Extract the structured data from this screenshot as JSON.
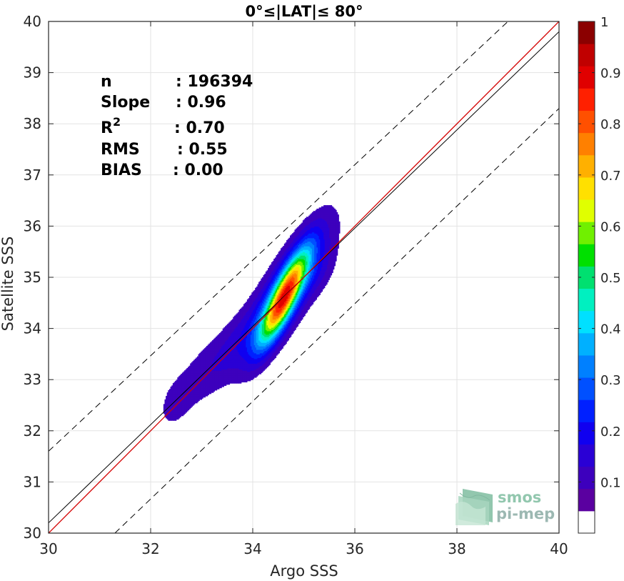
{
  "chart_data": {
    "type": "density-contour",
    "title": "0°≤|LAT|≤ 80°",
    "xlabel": "Argo SSS",
    "ylabel": "Satellite SSS",
    "xlim": [
      30,
      40
    ],
    "ylim": [
      30,
      40
    ],
    "xticks": [
      "30",
      "32",
      "34",
      "36",
      "38",
      "40"
    ],
    "yticks": [
      "30",
      "31",
      "32",
      "33",
      "34",
      "35",
      "36",
      "37",
      "38",
      "39",
      "40"
    ],
    "grid": true,
    "stats": [
      {
        "label": "n",
        "value": ": 196394"
      },
      {
        "label": "Slope",
        "value": ": 0.96"
      },
      {
        "label": "R",
        "sup": "2",
        "value": ": 0.70"
      },
      {
        "label": "RMS",
        "value": ": 0.55"
      },
      {
        "label": "BIAS",
        "value": ": 0.00"
      }
    ],
    "lines": {
      "identity": {
        "color": "#d40000",
        "points": [
          [
            30,
            30
          ],
          [
            40,
            40
          ]
        ]
      },
      "regression": {
        "color": "#000000",
        "slope": 0.96,
        "intercept": 1.4
      },
      "upper_bound": {
        "color": "#000000",
        "dashed": true,
        "points": [
          [
            30,
            31.6
          ],
          [
            39,
            40
          ]
        ]
      },
      "lower_bound": {
        "color": "#000000",
        "dashed": true,
        "points": [
          [
            31.3,
            30
          ],
          [
            40,
            38.3
          ]
        ]
      }
    },
    "density": {
      "peak_x": 34.6,
      "peak_y": 34.6,
      "levels": [
        0.05,
        0.1,
        0.15,
        0.2,
        0.25,
        0.3,
        0.35,
        0.4,
        0.45,
        0.5,
        0.55,
        0.6,
        0.65,
        0.7,
        0.75,
        0.8,
        0.85,
        0.9,
        0.95
      ],
      "components": [
        {
          "x": 34.62,
          "y": 34.62,
          "sx": 0.32,
          "sy": 0.62,
          "rho": 0.84,
          "w": 1.0
        },
        {
          "x": 34.7,
          "y": 34.8,
          "sx": 0.55,
          "sy": 0.85,
          "rho": 0.8,
          "w": 0.33
        },
        {
          "x": 33.8,
          "y": 33.8,
          "sx": 0.55,
          "sy": 0.6,
          "rho": 0.75,
          "w": 0.13
        },
        {
          "x": 32.9,
          "y": 33.0,
          "sx": 0.45,
          "sy": 0.55,
          "rho": 0.6,
          "w": 0.075
        },
        {
          "x": 32.45,
          "y": 32.5,
          "sx": 0.22,
          "sy": 0.35,
          "rho": 0.35,
          "w": 0.06
        },
        {
          "x": 35.3,
          "y": 35.1,
          "sx": 0.25,
          "sy": 0.35,
          "rho": 0.5,
          "w": 0.07
        }
      ]
    },
    "colorbar": {
      "ticks": [
        "0.1",
        "0.2",
        "0.3",
        "0.4",
        "0.5",
        "0.6",
        "0.7",
        "0.8",
        "0.9",
        "1"
      ],
      "range": [
        0,
        1
      ],
      "colors": [
        "#ffffff",
        "#5a00a0",
        "#3d00bd",
        "#2a00d5",
        "#1000f0",
        "#0020ff",
        "#0050ff",
        "#0080ff",
        "#00b0ff",
        "#00e0ff",
        "#00f0c0",
        "#00e070",
        "#00e000",
        "#70f000",
        "#e0ff00",
        "#ffe000",
        "#ffb000",
        "#ff8000",
        "#ff5000",
        "#ff2000",
        "#e00000",
        "#c00000",
        "#8b0000"
      ]
    }
  },
  "logo": {
    "line1": "smos",
    "line2": "pi-mep"
  }
}
